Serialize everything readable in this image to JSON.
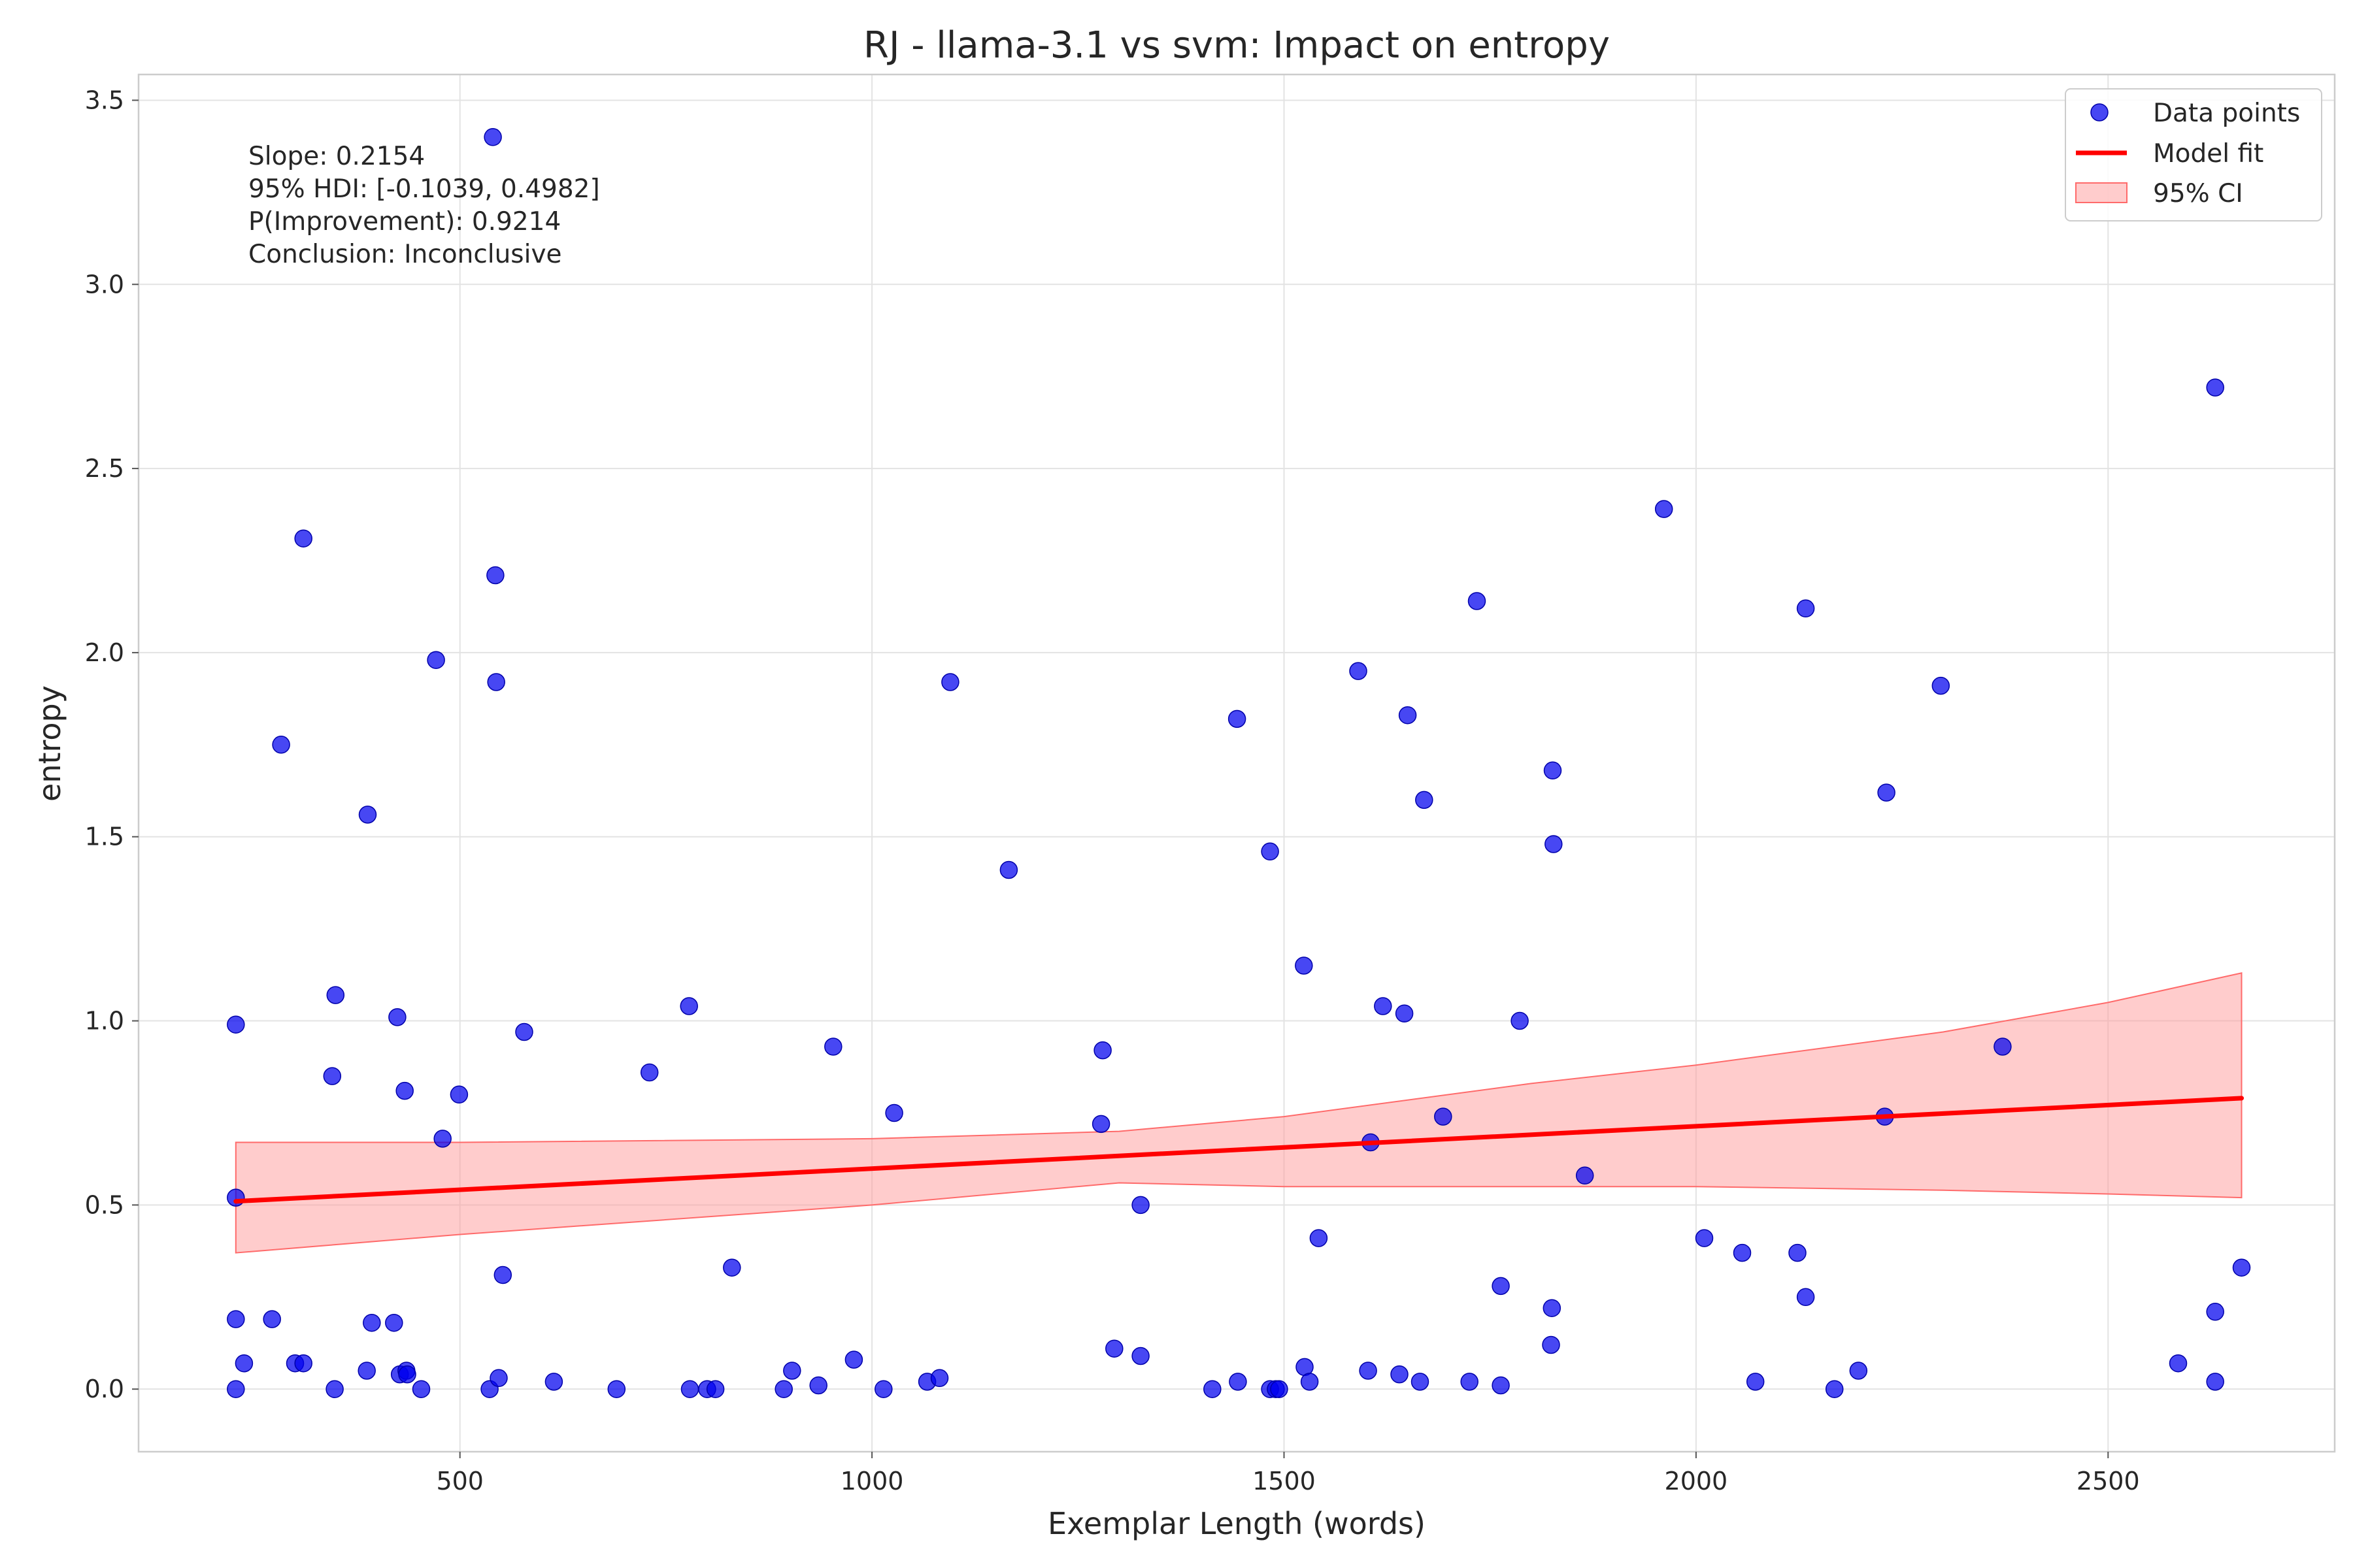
{
  "chart_data": {
    "type": "scatter",
    "title": "RJ - llama-3.1 vs svm: Impact on entropy",
    "xlabel": "Exemplar Length (words)",
    "ylabel": "entropy",
    "xlim": [
      110,
      2775
    ],
    "ylim": [
      -0.17,
      3.57
    ],
    "xticks": [
      500,
      1000,
      1500,
      2000,
      2500
    ],
    "yticks": [
      0.0,
      0.5,
      1.0,
      1.5,
      2.0,
      2.5,
      3.0,
      3.5
    ],
    "xtick_labels": [
      "500",
      "1000",
      "1500",
      "2000",
      "2500"
    ],
    "ytick_labels": [
      "0.0",
      "0.5",
      "1.0",
      "1.5",
      "2.0",
      "2.5",
      "3.0",
      "3.5"
    ],
    "grid": true,
    "legend": {
      "position": "top-right",
      "entries": [
        "Data points",
        "Model fit",
        "95% CI"
      ]
    },
    "annotations": [
      "Slope: 0.2154",
      "95% HDI: [-0.1039, 0.4982]",
      "P(Improvement): 0.9214",
      "Conclusion: Inconclusive"
    ],
    "colors": {
      "points": "#0000ee",
      "fit": "#ff0000",
      "ci": "#ff9a9a"
    },
    "series": [
      {
        "name": "Data points",
        "kind": "scatter",
        "x": [
          228,
          228,
          228,
          228,
          238,
          272,
          283,
          300,
          310,
          310,
          345,
          348,
          349,
          387,
          388,
          393,
          420,
          424,
          427,
          433,
          435,
          436,
          453,
          471,
          479,
          499,
          536,
          540,
          543,
          544,
          547,
          552,
          578,
          614,
          690,
          730,
          778,
          779,
          800,
          810,
          830,
          893,
          903,
          935,
          953,
          978,
          1014,
          1027,
          1067,
          1082,
          1095,
          1166,
          1278,
          1280,
          1294,
          1326,
          1326,
          1413,
          1443,
          1444,
          1483,
          1483,
          1490,
          1494,
          1524,
          1525,
          1531,
          1542,
          1590,
          1602,
          1605,
          1620,
          1640,
          1646,
          1650,
          1665,
          1670,
          1693,
          1725,
          1734,
          1763,
          1763,
          1786,
          1824,
          1825,
          1826,
          1827,
          1865,
          1961,
          2010,
          2056,
          2072,
          2123,
          2133,
          2133,
          2168,
          2197,
          2229,
          2231,
          2297,
          2372,
          2585,
          2630,
          2630,
          2630,
          2662
        ],
        "y": [
          0.99,
          0.52,
          0.19,
          0.0,
          0.07,
          0.19,
          1.75,
          0.07,
          2.31,
          0.07,
          0.85,
          0.0,
          1.07,
          0.05,
          1.56,
          0.18,
          0.18,
          1.01,
          0.04,
          0.81,
          0.05,
          0.04,
          0.0,
          1.98,
          0.68,
          0.8,
          0.0,
          3.4,
          2.21,
          1.92,
          0.03,
          0.31,
          0.97,
          0.02,
          0.0,
          0.86,
          1.04,
          0.0,
          0.0,
          0.0,
          0.33,
          0.0,
          0.05,
          0.01,
          0.93,
          0.08,
          0.0,
          0.75,
          0.02,
          0.03,
          1.92,
          1.41,
          0.72,
          0.92,
          0.11,
          0.5,
          0.09,
          0.0,
          1.82,
          0.02,
          0.0,
          1.46,
          0.0,
          0.0,
          1.15,
          0.06,
          0.02,
          0.41,
          1.95,
          0.05,
          0.67,
          1.04,
          0.04,
          1.02,
          1.83,
          0.02,
          1.6,
          0.74,
          0.02,
          2.14,
          0.28,
          0.01,
          1.0,
          0.12,
          0.22,
          1.68,
          1.48,
          0.58,
          2.39,
          0.41,
          0.37,
          0.02,
          0.37,
          2.12,
          0.25,
          0.0,
          0.05,
          0.74,
          1.62,
          1.91,
          0.93,
          0.07,
          0.21,
          0.02,
          2.72,
          0.33
        ]
      },
      {
        "name": "Model fit",
        "kind": "line",
        "x": [
          228,
          2662
        ],
        "y": [
          0.51,
          0.79
        ]
      },
      {
        "name": "95% CI",
        "kind": "band",
        "x": [
          228,
          500,
          1000,
          1300,
          1500,
          1800,
          2000,
          2300,
          2500,
          2662
        ],
        "lower": [
          0.37,
          0.42,
          0.5,
          0.56,
          0.55,
          0.55,
          0.55,
          0.54,
          0.53,
          0.52
        ],
        "upper": [
          0.67,
          0.67,
          0.68,
          0.7,
          0.74,
          0.83,
          0.88,
          0.97,
          1.05,
          1.13
        ]
      }
    ]
  }
}
